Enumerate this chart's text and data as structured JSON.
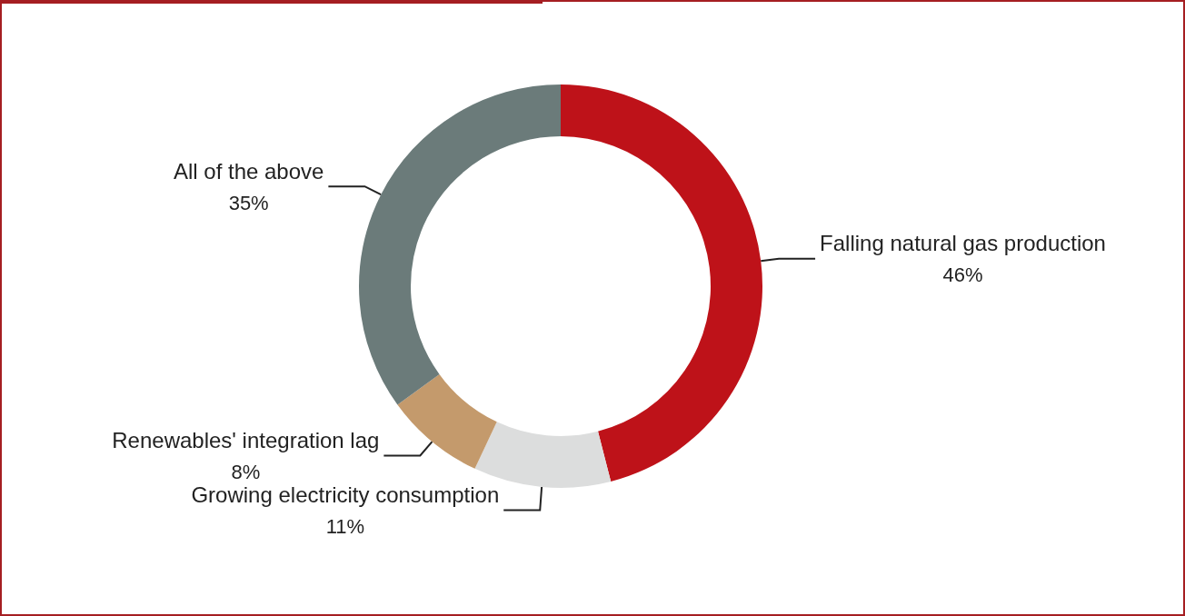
{
  "chart_data": {
    "type": "donut",
    "categories": [
      "Falling natural gas production",
      "Growing electricity consumption",
      "Renewables' integration lag",
      "All of the above"
    ],
    "values": [
      46,
      11,
      8,
      35
    ],
    "value_labels": [
      "46%",
      "11%",
      "8%",
      "35%"
    ],
    "colors": [
      "#be1219",
      "#dcdddd",
      "#c49a6c",
      "#6b7b7a"
    ]
  }
}
